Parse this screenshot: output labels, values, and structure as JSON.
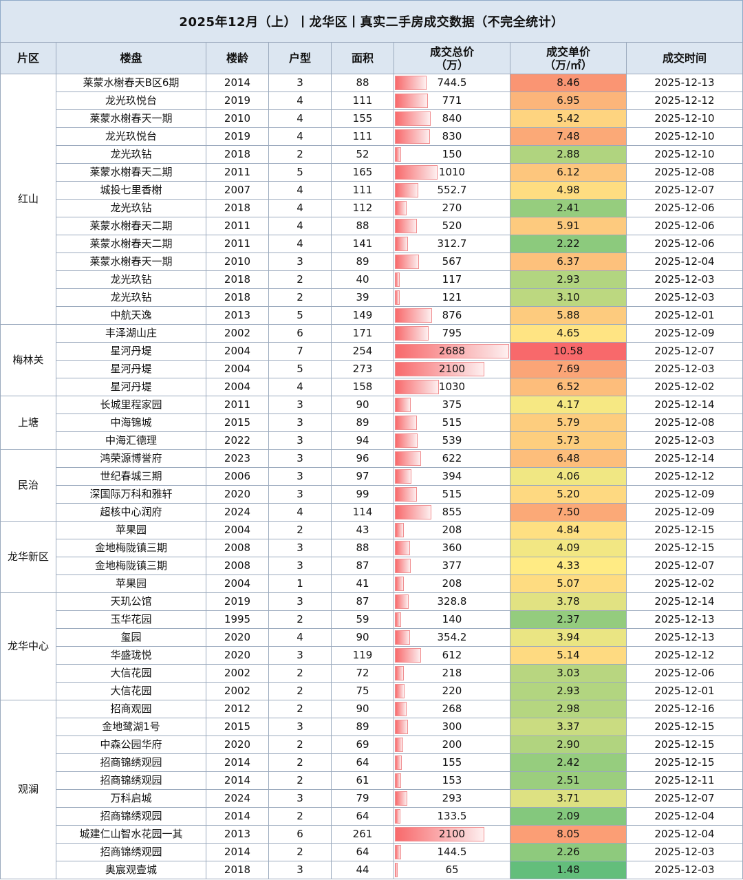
{
  "title": "2025年12月（上）丨龙华区丨真实二手房成交数据（不完全统计）",
  "headers": {
    "district": "片区",
    "estate": "楼盘",
    "age": "楼龄",
    "rooms": "户型",
    "area": "面积",
    "total_price": [
      "成交总价",
      "（万）"
    ],
    "unit_price": [
      "成交单价",
      "（万/㎡）"
    ],
    "date": "成交时间"
  },
  "groups": [
    {
      "district": "红山",
      "rows": [
        {
          "estate": "莱蒙水榭春天B区6期",
          "year": "2014",
          "rooms": "3",
          "area": "88",
          "total": "744.5",
          "unit": "8.46",
          "date": "2025-12-13"
        },
        {
          "estate": "龙光玖悦台",
          "year": "2019",
          "rooms": "4",
          "area": "111",
          "total": "771",
          "unit": "6.95",
          "date": "2025-12-12"
        },
        {
          "estate": "莱蒙水榭春天一期",
          "year": "2010",
          "rooms": "4",
          "area": "155",
          "total": "840",
          "unit": "5.42",
          "date": "2025-12-10"
        },
        {
          "estate": "龙光玖悦台",
          "year": "2019",
          "rooms": "4",
          "area": "111",
          "total": "830",
          "unit": "7.48",
          "date": "2025-12-10"
        },
        {
          "estate": "龙光玖钻",
          "year": "2018",
          "rooms": "2",
          "area": "52",
          "total": "150",
          "unit": "2.88",
          "date": "2025-12-10"
        },
        {
          "estate": "莱蒙水榭春天二期",
          "year": "2011",
          "rooms": "5",
          "area": "165",
          "total": "1010",
          "unit": "6.12",
          "date": "2025-12-08"
        },
        {
          "estate": "城投七里香榭",
          "year": "2007",
          "rooms": "4",
          "area": "111",
          "total": "552.7",
          "unit": "4.98",
          "date": "2025-12-07"
        },
        {
          "estate": "龙光玖钻",
          "year": "2018",
          "rooms": "4",
          "area": "112",
          "total": "270",
          "unit": "2.41",
          "date": "2025-12-06"
        },
        {
          "estate": "莱蒙水榭春天二期",
          "year": "2011",
          "rooms": "4",
          "area": "88",
          "total": "520",
          "unit": "5.91",
          "date": "2025-12-06"
        },
        {
          "estate": "莱蒙水榭春天二期",
          "year": "2011",
          "rooms": "4",
          "area": "141",
          "total": "312.7",
          "unit": "2.22",
          "date": "2025-12-06"
        },
        {
          "estate": "莱蒙水榭春天一期",
          "year": "2010",
          "rooms": "3",
          "area": "89",
          "total": "567",
          "unit": "6.37",
          "date": "2025-12-04"
        },
        {
          "estate": "龙光玖钻",
          "year": "2018",
          "rooms": "2",
          "area": "40",
          "total": "117",
          "unit": "2.93",
          "date": "2025-12-03"
        },
        {
          "estate": "龙光玖钻",
          "year": "2018",
          "rooms": "2",
          "area": "39",
          "total": "121",
          "unit": "3.10",
          "date": "2025-12-03"
        },
        {
          "estate": "中航天逸",
          "year": "2013",
          "rooms": "5",
          "area": "149",
          "total": "876",
          "unit": "5.88",
          "date": "2025-12-01"
        }
      ]
    },
    {
      "district": "梅林关",
      "rows": [
        {
          "estate": "丰泽湖山庄",
          "year": "2002",
          "rooms": "6",
          "area": "171",
          "total": "795",
          "unit": "4.65",
          "date": "2025-12-09"
        },
        {
          "estate": "星河丹堤",
          "year": "2004",
          "rooms": "7",
          "area": "254",
          "total": "2688",
          "unit": "10.58",
          "date": "2025-12-07"
        },
        {
          "estate": "星河丹堤",
          "year": "2004",
          "rooms": "5",
          "area": "273",
          "total": "2100",
          "unit": "7.69",
          "date": "2025-12-03"
        },
        {
          "estate": "星河丹堤",
          "year": "2004",
          "rooms": "4",
          "area": "158",
          "total": "1030",
          "unit": "6.52",
          "date": "2025-12-02"
        }
      ]
    },
    {
      "district": "上塘",
      "rows": [
        {
          "estate": "长城里程家园",
          "year": "2011",
          "rooms": "3",
          "area": "90",
          "total": "375",
          "unit": "4.17",
          "date": "2025-12-14"
        },
        {
          "estate": "中海锦城",
          "year": "2015",
          "rooms": "3",
          "area": "89",
          "total": "515",
          "unit": "5.79",
          "date": "2025-12-08"
        },
        {
          "estate": "中海汇德理",
          "year": "2022",
          "rooms": "3",
          "area": "94",
          "total": "539",
          "unit": "5.73",
          "date": "2025-12-03"
        }
      ]
    },
    {
      "district": "民治",
      "rows": [
        {
          "estate": "鸿荣源博誉府",
          "year": "2023",
          "rooms": "3",
          "area": "96",
          "total": "622",
          "unit": "6.48",
          "date": "2025-12-14"
        },
        {
          "estate": "世纪春城三期",
          "year": "2006",
          "rooms": "3",
          "area": "97",
          "total": "394",
          "unit": "4.06",
          "date": "2025-12-12"
        },
        {
          "estate": "深国际万科和雅轩",
          "year": "2020",
          "rooms": "3",
          "area": "99",
          "total": "515",
          "unit": "5.20",
          "date": "2025-12-09"
        },
        {
          "estate": "超核中心润府",
          "year": "2024",
          "rooms": "4",
          "area": "114",
          "total": "855",
          "unit": "7.50",
          "date": "2025-12-09"
        }
      ]
    },
    {
      "district": "龙华新区",
      "rows": [
        {
          "estate": "苹果园",
          "year": "2004",
          "rooms": "2",
          "area": "43",
          "total": "208",
          "unit": "4.84",
          "date": "2025-12-15"
        },
        {
          "estate": "金地梅陇镇三期",
          "year": "2008",
          "rooms": "3",
          "area": "88",
          "total": "360",
          "unit": "4.09",
          "date": "2025-12-15"
        },
        {
          "estate": "金地梅陇镇三期",
          "year": "2008",
          "rooms": "3",
          "area": "87",
          "total": "377",
          "unit": "4.33",
          "date": "2025-12-07"
        },
        {
          "estate": "苹果园",
          "year": "2004",
          "rooms": "1",
          "area": "41",
          "total": "208",
          "unit": "5.07",
          "date": "2025-12-02"
        }
      ]
    },
    {
      "district": "龙华中心",
      "rows": [
        {
          "estate": "天玑公馆",
          "year": "2019",
          "rooms": "3",
          "area": "87",
          "total": "328.8",
          "unit": "3.78",
          "date": "2025-12-14"
        },
        {
          "estate": "玉华花园",
          "year": "1995",
          "rooms": "2",
          "area": "59",
          "total": "140",
          "unit": "2.37",
          "date": "2025-12-13"
        },
        {
          "estate": "玺园",
          "year": "2020",
          "rooms": "4",
          "area": "90",
          "total": "354.2",
          "unit": "3.94",
          "date": "2025-12-13"
        },
        {
          "estate": "华盛珑悦",
          "year": "2020",
          "rooms": "3",
          "area": "119",
          "total": "612",
          "unit": "5.14",
          "date": "2025-12-12"
        },
        {
          "estate": "大信花园",
          "year": "2002",
          "rooms": "2",
          "area": "72",
          "total": "218",
          "unit": "3.03",
          "date": "2025-12-06"
        },
        {
          "estate": "大信花园",
          "year": "2002",
          "rooms": "2",
          "area": "75",
          "total": "220",
          "unit": "2.93",
          "date": "2025-12-01"
        }
      ]
    },
    {
      "district": "观澜",
      "rows": [
        {
          "estate": "招商观园",
          "year": "2012",
          "rooms": "2",
          "area": "90",
          "total": "268",
          "unit": "2.98",
          "date": "2025-12-16"
        },
        {
          "estate": "金地鹭湖1号",
          "year": "2015",
          "rooms": "3",
          "area": "89",
          "total": "300",
          "unit": "3.37",
          "date": "2025-12-15"
        },
        {
          "estate": "中森公园华府",
          "year": "2020",
          "rooms": "2",
          "area": "69",
          "total": "200",
          "unit": "2.90",
          "date": "2025-12-15"
        },
        {
          "estate": "招商锦绣观园",
          "year": "2014",
          "rooms": "2",
          "area": "64",
          "total": "155",
          "unit": "2.42",
          "date": "2025-12-15"
        },
        {
          "estate": "招商锦绣观园",
          "year": "2014",
          "rooms": "2",
          "area": "61",
          "total": "153",
          "unit": "2.51",
          "date": "2025-12-11"
        },
        {
          "estate": "万科启城",
          "year": "2024",
          "rooms": "3",
          "area": "79",
          "total": "293",
          "unit": "3.71",
          "date": "2025-12-07"
        },
        {
          "estate": "招商锦绣观园",
          "year": "2014",
          "rooms": "2",
          "area": "64",
          "total": "133.5",
          "unit": "2.09",
          "date": "2025-12-04"
        },
        {
          "estate": "城建仁山智水花园一其",
          "year": "2013",
          "rooms": "6",
          "area": "261",
          "total": "2100",
          "unit": "8.05",
          "date": "2025-12-04"
        },
        {
          "estate": "招商锦绣观园",
          "year": "2014",
          "rooms": "2",
          "area": "64",
          "total": "144.5",
          "unit": "2.26",
          "date": "2025-12-03"
        },
        {
          "estate": "奥宸观壹城",
          "year": "2018",
          "rooms": "3",
          "area": "44",
          "total": "65",
          "unit": "1.48",
          "date": "2025-12-03"
        }
      ]
    }
  ],
  "colors": {
    "header_bg": "#dce6f1",
    "bar_color": "#f8696b",
    "scale_low": "#63be7b",
    "scale_mid": "#ffeb84",
    "scale_high": "#f8696b"
  }
}
